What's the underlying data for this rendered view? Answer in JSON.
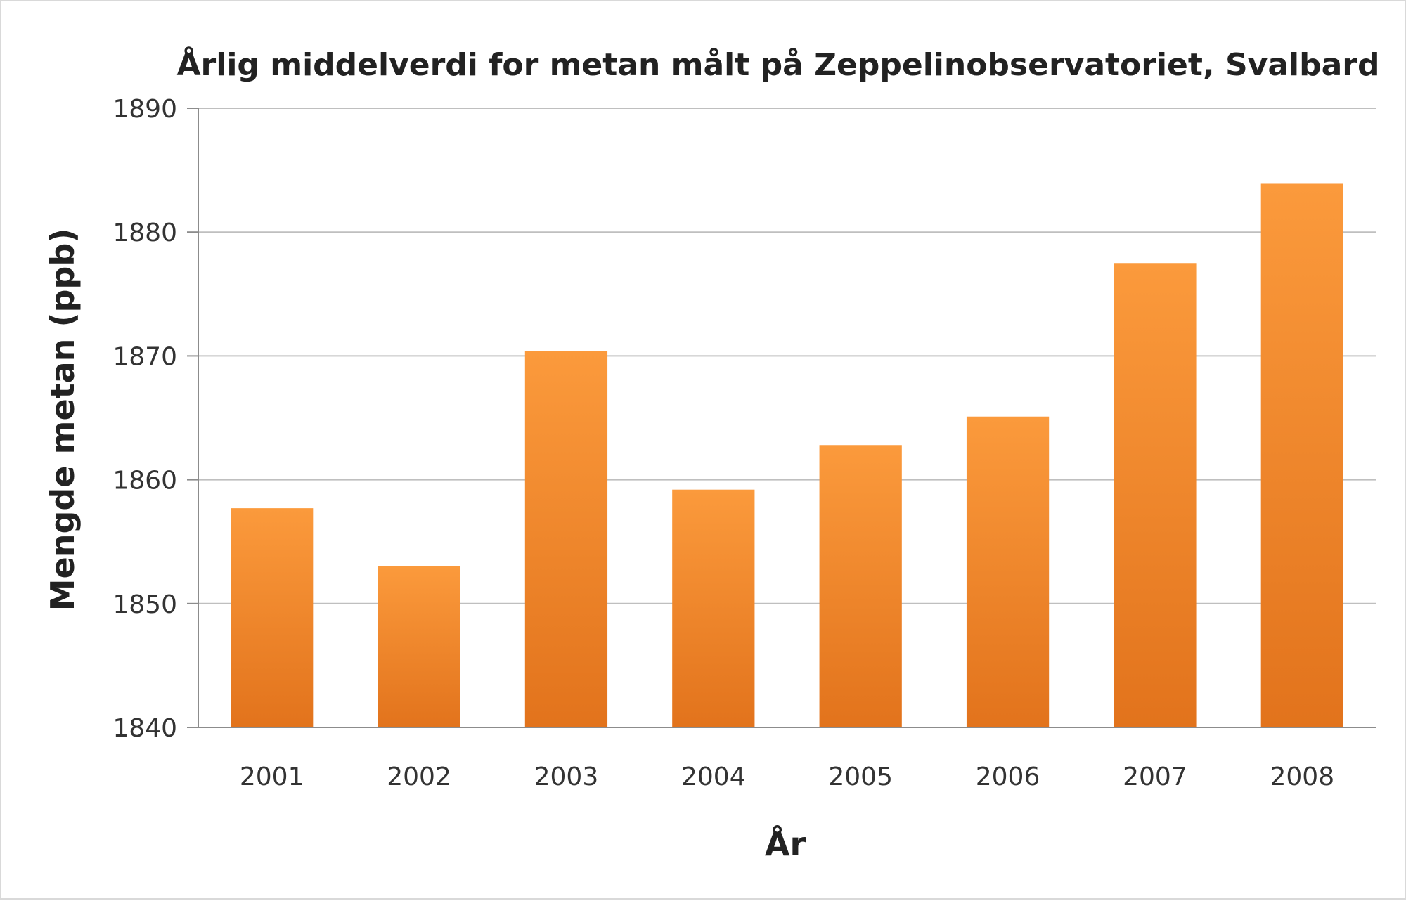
{
  "chart_data": {
    "type": "bar",
    "title": "Årlig middelverdi for metan målt på Zeppelinobservatoriet, Svalbard",
    "xlabel": "År",
    "ylabel": "Mengde metan (ppb)",
    "categories": [
      "2001",
      "2002",
      "2003",
      "2004",
      "2005",
      "2006",
      "2007",
      "2008"
    ],
    "values": [
      1857.7,
      1853.0,
      1870.4,
      1859.2,
      1862.8,
      1865.1,
      1877.5,
      1883.9
    ],
    "ylim": [
      1840,
      1890
    ],
    "yticks": [
      "1840",
      "1850",
      "1860",
      "1870",
      "1880",
      "1890"
    ],
    "grid": true,
    "legend": "none",
    "colors": {
      "bar_light": "#fb9a3c",
      "bar_dark": "#e2731c",
      "grid": "#bfbfbf",
      "axis": "#8c8c8c"
    }
  }
}
